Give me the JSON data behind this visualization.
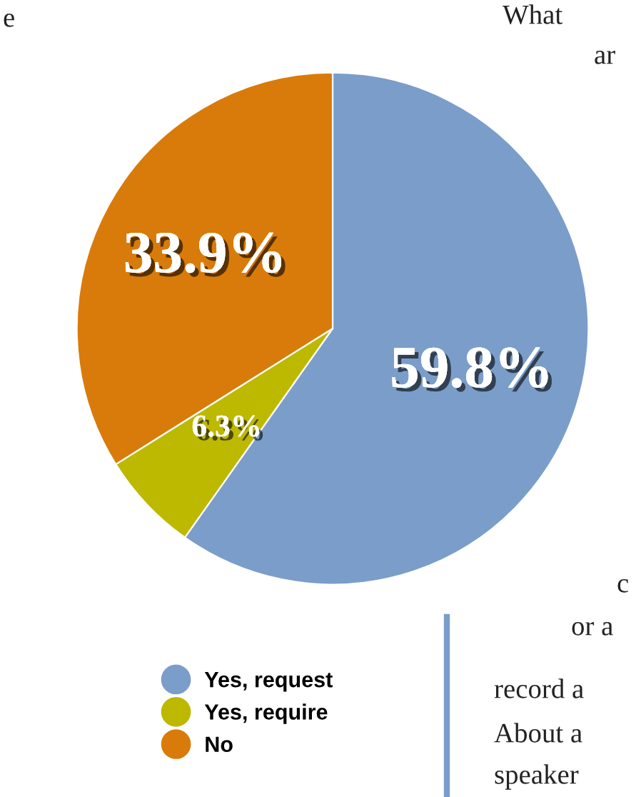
{
  "chart_data": {
    "type": "pie",
    "categories": [
      "Yes, request",
      "Yes, require",
      "No"
    ],
    "values": [
      59.8,
      6.3,
      33.9
    ],
    "colors": [
      "#7b9dc9",
      "#bdb800",
      "#d97b0a"
    ],
    "value_labels": [
      "59.8%",
      "6.3%",
      "33.9%"
    ],
    "legend": "bottom left",
    "annotations": [
      "e",
      "What",
      "ar",
      "c",
      "or a",
      "record a",
      "About a",
      "speaker"
    ]
  }
}
